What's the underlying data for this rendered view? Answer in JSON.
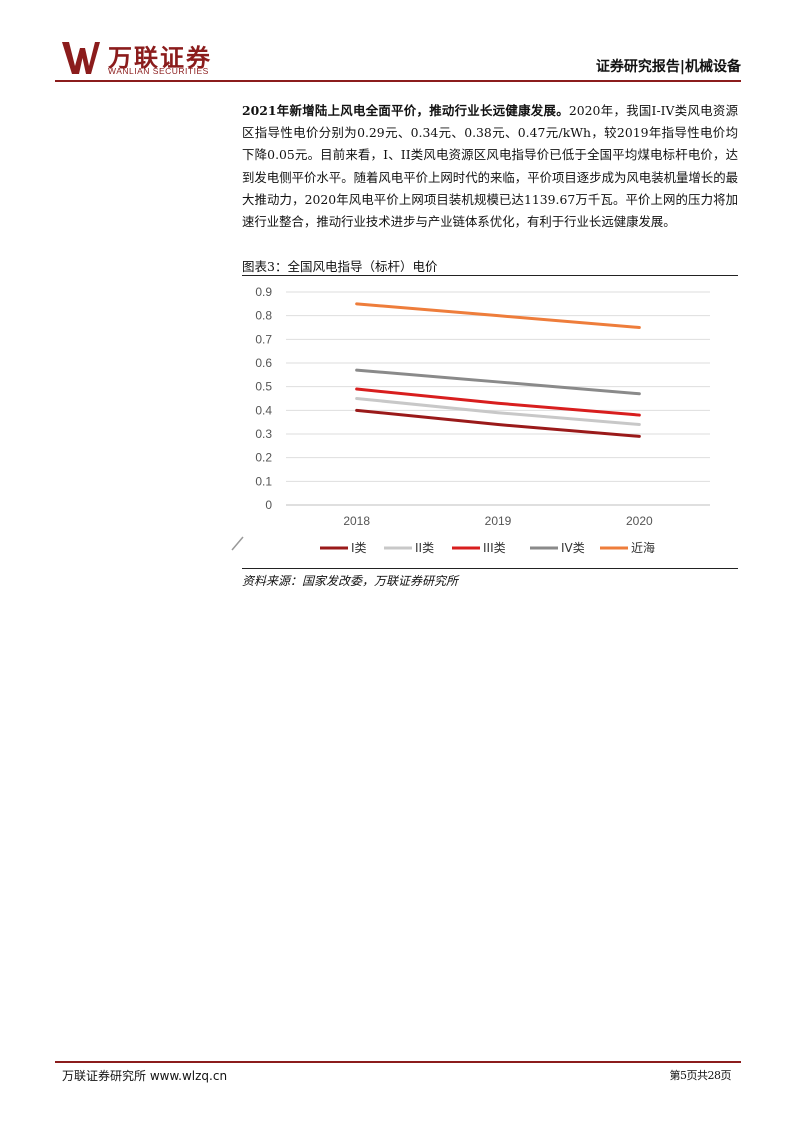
{
  "header": {
    "logo_cn": "万联证券",
    "logo_en": "WANLIAN SECURITIES",
    "report_type": "证券研究报告|机械设备"
  },
  "body": {
    "lead": "2021年新增陆上风电全面平价，推动行业长远健康发展。",
    "text": "2020年，我国I-IV类风电资源区指导性电价分别为0.29元、0.34元、0.38元、0.47元/kWh，较2019年指导性电价均下降0.05元。目前来看，I、II类风电资源区风电指导价已低于全国平均煤电标杆电价，达到发电侧平价水平。随着风电平价上网时代的来临，平价项目逐步成为风电装机量增长的最大推动力，2020年风电平价上网项目装机规模已达1139.67万千瓦。平价上网的压力将加速行业整合，推动行业技术进步与产业链体系优化，有利于行业长远健康发展。"
  },
  "figure": {
    "title": "图表3：全国风电指导（标杆）电价",
    "source": "资料来源：国家发改委，万联证券研究所"
  },
  "chart_data": {
    "type": "line",
    "title": "",
    "xlabel": "",
    "ylabel": "",
    "categories": [
      "2018",
      "2019",
      "2020"
    ],
    "ylim": [
      0,
      0.9
    ],
    "yticks": [
      "0",
      "0.1",
      "0.2",
      "0.3",
      "0.4",
      "0.5",
      "0.6",
      "0.7",
      "0.8",
      "0.9"
    ],
    "grid": true,
    "legend_position": "bottom",
    "series": [
      {
        "name": "I类",
        "values": [
          0.4,
          0.34,
          0.29
        ],
        "color": "#9a1a1a"
      },
      {
        "name": "II类",
        "values": [
          0.45,
          0.39,
          0.34
        ],
        "color": "#c8c8c8"
      },
      {
        "name": "III类",
        "values": [
          0.49,
          0.43,
          0.38
        ],
        "color": "#d81e1e"
      },
      {
        "name": "IV类",
        "values": [
          0.57,
          0.52,
          0.47
        ],
        "color": "#8a8a8a"
      },
      {
        "name": "近海",
        "values": [
          0.85,
          0.8,
          0.75
        ],
        "color": "#ee7d3b"
      }
    ]
  },
  "footer": {
    "left": "万联证券研究所 www.wlzq.cn",
    "right": "第5页共28页"
  },
  "colors": {
    "brand": "#8b1c1c"
  }
}
